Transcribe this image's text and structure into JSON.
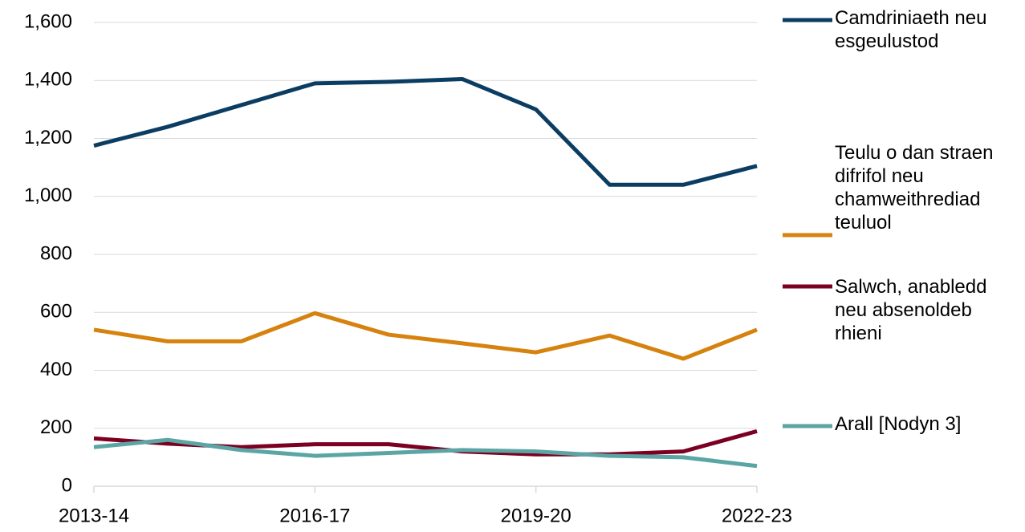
{
  "chart_data": {
    "type": "line",
    "categories": [
      "2013-14",
      null,
      null,
      "2016-17",
      null,
      null,
      "2019-20",
      null,
      null,
      "2022-23"
    ],
    "series": [
      {
        "name": "Camdriniaeth neu esgeulustod",
        "color": "#0b3d63",
        "values": [
          1175,
          1240,
          1315,
          1390,
          1395,
          1405,
          1300,
          1040,
          1040,
          1105
        ]
      },
      {
        "name": "Teulu o dan straen difrifol neu chamweithrediad teuluol",
        "color": "#d6820e",
        "values": [
          540,
          500,
          500,
          597,
          523,
          493,
          462,
          520,
          440,
          540
        ]
      },
      {
        "name": "Salwch, anabledd neu absenoldeb rhieni",
        "color": "#7b0022",
        "values": [
          165,
          147,
          135,
          145,
          145,
          120,
          110,
          110,
          120,
          190
        ]
      },
      {
        "name": "Arall [Nodyn 3]",
        "color": "#5ba5a5",
        "values": [
          135,
          160,
          125,
          105,
          115,
          125,
          120,
          105,
          100,
          70
        ]
      }
    ],
    "ylim": [
      0,
      1600
    ],
    "yticks": [
      0,
      200,
      400,
      600,
      800,
      {
        "value": 1000,
        "label": "1,000"
      },
      {
        "value": 1200,
        "label": "1,200"
      },
      {
        "value": 1400,
        "label": "1,400"
      },
      {
        "value": 1600,
        "label": "1,600"
      }
    ],
    "grid": true,
    "legend": "right"
  }
}
